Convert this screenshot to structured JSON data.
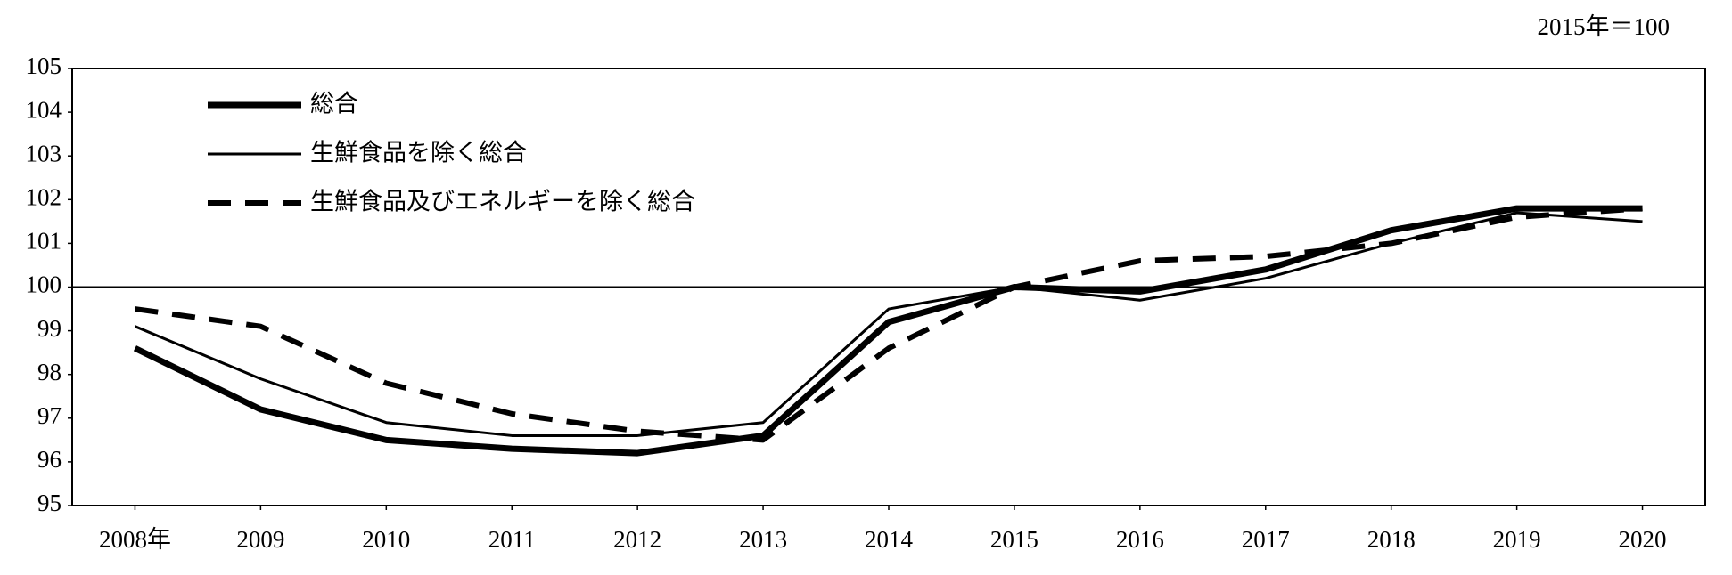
{
  "chart_data": {
    "type": "line",
    "note": "2015年＝100",
    "categories": [
      "2008年",
      "2009",
      "2010",
      "2011",
      "2012",
      "2013",
      "2014",
      "2015",
      "2016",
      "2017",
      "2018",
      "2019",
      "2020"
    ],
    "series": [
      {
        "name": "総合",
        "color": "#000000",
        "style": "solid",
        "width": 7,
        "values": [
          98.6,
          97.2,
          96.5,
          96.3,
          96.2,
          96.6,
          99.2,
          100,
          99.9,
          100.4,
          101.3,
          101.8,
          101.8
        ]
      },
      {
        "name": "生鮮食品を除く総合",
        "color": "#000000",
        "style": "solid",
        "width": 3,
        "values": [
          99.1,
          97.9,
          96.9,
          96.6,
          96.6,
          96.9,
          99.5,
          100,
          99.7,
          100.2,
          101.0,
          101.7,
          101.5
        ]
      },
      {
        "name": "生鮮食品及びエネルギーを除く総合",
        "color": "#000000",
        "style": "dashed",
        "width": 6,
        "values": [
          99.5,
          99.1,
          97.8,
          97.1,
          96.7,
          96.5,
          98.6,
          100,
          100.6,
          100.7,
          101.0,
          101.6,
          101.8
        ]
      }
    ],
    "ylim": [
      95,
      105
    ],
    "yticks": [
      95,
      96,
      97,
      98,
      99,
      100,
      101,
      102,
      103,
      104,
      105
    ],
    "reference_line": 100,
    "grid": false,
    "legend": "top-left"
  }
}
